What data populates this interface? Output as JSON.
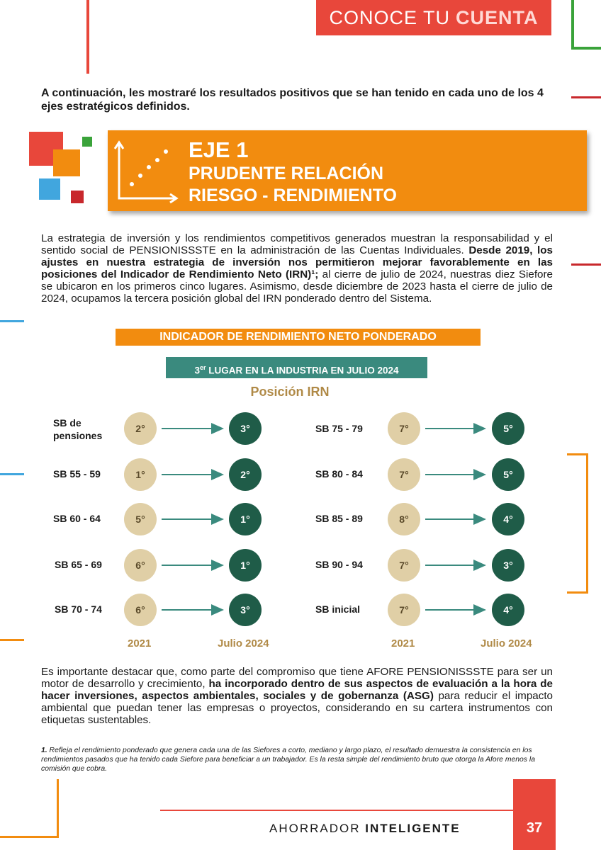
{
  "header": {
    "title_light": "CONOCE TU",
    "title_bold": "CUENTA"
  },
  "intro": "A continuación, les mostraré los resultados positivos que se han tenido en cada uno de los 4 ejes estratégicos definidos.",
  "eje": {
    "title": "EJE 1",
    "line1": "PRUDENTE RELACIÓN",
    "line2": "RIESGO - RENDIMIENTO"
  },
  "paragraph1": {
    "part1": "La estrategia de inversión y los rendimientos competitivos generados muestran la responsabilidad y el sentido social de PENSIONISSSTE en la administración de las Cuentas Individuales. ",
    "bold": "Desde 2019, los ajustes en nuestra estrategia de inversión nos permitieron mejorar favorablemente en las posiciones del Indicador de Rendimiento Neto (IRN)¹;",
    "part2": " al cierre de julio de 2024, nuestras diez Siefore se ubicaron en los primeros cinco lugares. Asimismo, desde diciembre de 2023 hasta el cierre de julio de 2024, ocupamos la tercera posición global del IRN ponderado dentro del Sistema."
  },
  "irn_title": "INDICADOR DE RENDIMIENTO NETO PONDERADO",
  "lugar": {
    "num": "3",
    "sup": "er",
    "text": " LUGAR EN LA INDUSTRIA EN JULIO 2024"
  },
  "position_title": "Posición IRN",
  "years": {
    "from": "2021",
    "to": "Julio 2024"
  },
  "left_rows": [
    {
      "label": "SB de pensiones",
      "from": "2°",
      "to": "3°"
    },
    {
      "label": "SB 55 - 59",
      "from": "1°",
      "to": "2°"
    },
    {
      "label": "SB 60 - 64",
      "from": "5°",
      "to": "1°"
    },
    {
      "label": "SB 65 - 69",
      "from": "6°",
      "to": "1°"
    },
    {
      "label": "SB 70 - 74",
      "from": "6°",
      "to": "3°"
    }
  ],
  "right_rows": [
    {
      "label": "SB 75 - 79",
      "from": "7°",
      "to": "5°"
    },
    {
      "label": "SB 80 - 84",
      "from": "7°",
      "to": "5°"
    },
    {
      "label": "SB 85 - 89",
      "from": "8°",
      "to": "4°"
    },
    {
      "label": "SB 90 - 94",
      "from": "7°",
      "to": "3°"
    },
    {
      "label": "SB inicial",
      "from": "7°",
      "to": "4°"
    }
  ],
  "paragraph2": {
    "part1": "Es importante destacar que, como parte del compromiso que tiene AFORE PENSIONISSSTE para ser un motor de desarrollo y crecimiento, ",
    "bold": "ha incorporado dentro de sus aspectos de evaluación a la hora de hacer inversiones, aspectos ambientales, sociales y de gobernanza (ASG)",
    "part2": " para reducir el impacto ambiental que puedan tener las empresas o proyectos, considerando en su cartera instrumentos con etiquetas sustentables."
  },
  "footnote": {
    "num": "1.",
    "text": " Refleja el rendimiento ponderado que genera cada una de las Siefores a corto, mediano y largo plazo, el resultado demuestra la consistencia en los rendimientos pasados que ha tenido cada Siefore para beneficiar a un trabajador. Es la resta simple del rendimiento bruto que otorga la Afore menos la comisión que cobra."
  },
  "footer": {
    "light": "AHORRADOR ",
    "bold": "INTELIGENTE",
    "page": "37"
  },
  "colors": {
    "red": "#e8473b",
    "orange": "#f28c0f",
    "teal": "#3a8a7e",
    "dark_green": "#1f5c48",
    "beige": "#e0cfa6",
    "gold": "#b08a47",
    "blue": "#41a6de",
    "green": "#3aa33a"
  }
}
